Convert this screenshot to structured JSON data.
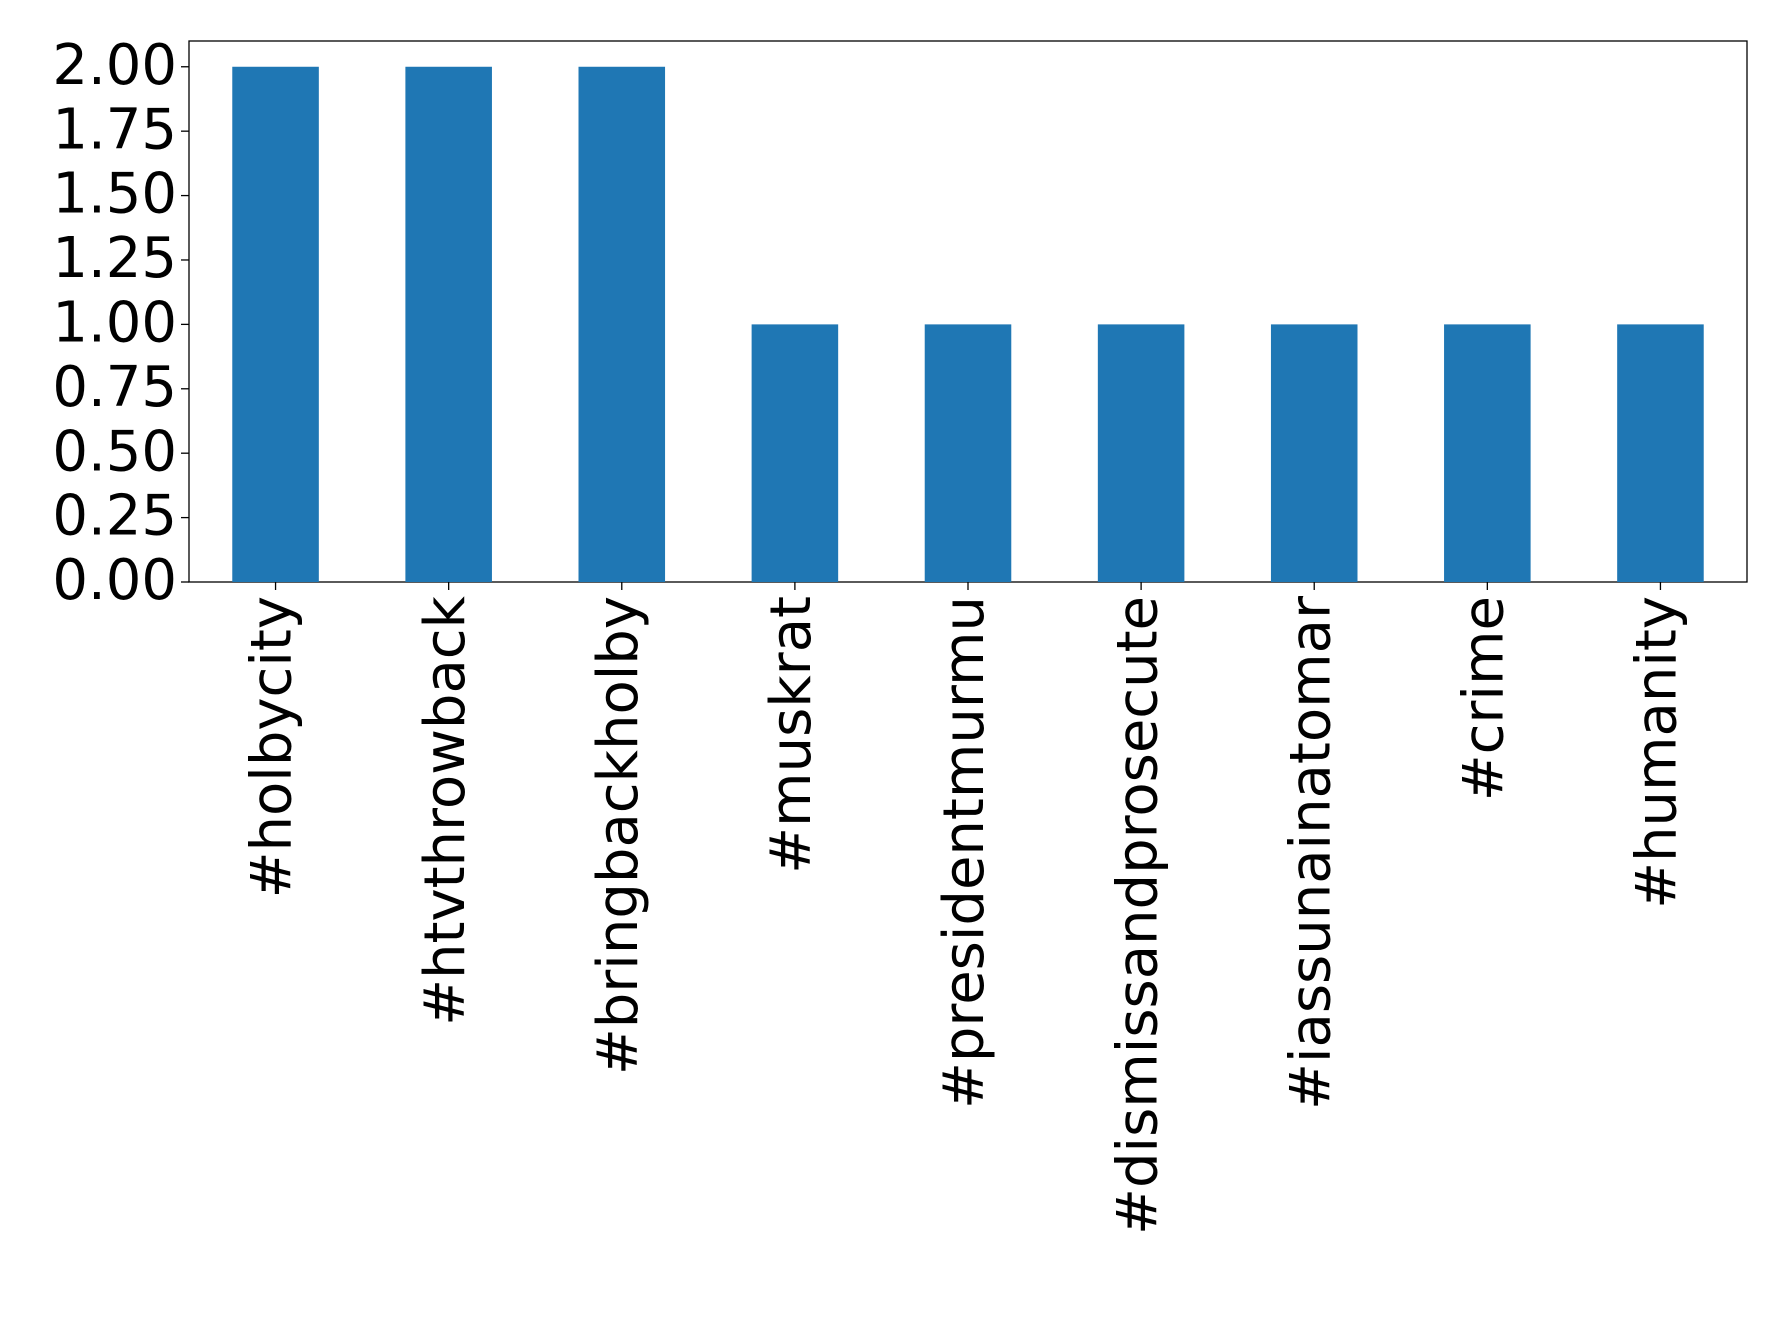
{
  "chart_data": {
    "type": "bar",
    "categories": [
      "#holbycity",
      "#htvthrowback",
      "#bringbackholby",
      "#muskrat",
      "#presidentmurmu",
      "#dismissandprosecute",
      "#iassunainatomar",
      "#crime",
      "#humanity"
    ],
    "values": [
      2,
      2,
      2,
      1,
      1,
      1,
      1,
      1,
      1
    ],
    "color": "#1f77b4",
    "ylim": [
      0,
      2.1
    ],
    "yticks": [
      {
        "value": 0,
        "label": "0.00"
      },
      {
        "value": 0.25,
        "label": "0.25"
      },
      {
        "value": 0.5,
        "label": "0.50"
      },
      {
        "value": 0.75,
        "label": "0.75"
      },
      {
        "value": 1,
        "label": "1.00"
      },
      {
        "value": 1.25,
        "label": "1.25"
      },
      {
        "value": 1.5,
        "label": "1.50"
      },
      {
        "value": 1.75,
        "label": "1.75"
      },
      {
        "value": 2,
        "label": "2.00"
      }
    ],
    "grid": false
  }
}
